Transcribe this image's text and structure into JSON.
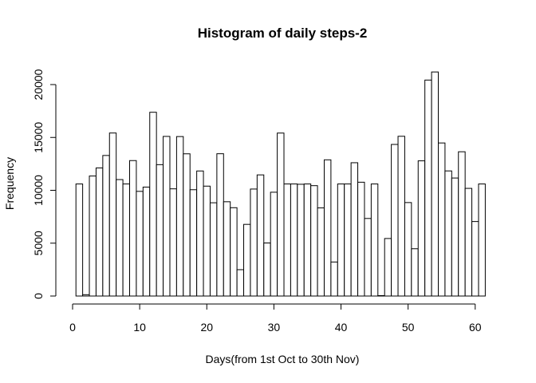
{
  "chart_data": {
    "type": "bar",
    "title": "Histogram of daily steps-2",
    "xlabel": "Days(from 1st Oct to 30th Nov)",
    "ylabel": "Frequency",
    "xlim": [
      0,
      62
    ],
    "ylim": [
      0,
      21500
    ],
    "x_ticks": [
      0,
      10,
      20,
      30,
      40,
      50,
      60
    ],
    "y_ticks": [
      0,
      5000,
      10000,
      15000,
      20000
    ],
    "grid": false,
    "legend": "none",
    "x": [
      1,
      2,
      3,
      4,
      5,
      6,
      7,
      8,
      9,
      10,
      11,
      12,
      13,
      14,
      15,
      16,
      17,
      18,
      19,
      20,
      21,
      22,
      23,
      24,
      25,
      26,
      27,
      28,
      29,
      30,
      31,
      32,
      33,
      34,
      35,
      36,
      37,
      38,
      39,
      40,
      41,
      42,
      43,
      44,
      45,
      46,
      47,
      48,
      49,
      50,
      51,
      52,
      53,
      54,
      55,
      56,
      57,
      58,
      59,
      60,
      61
    ],
    "values": [
      10600,
      126,
      11352,
      12116,
      13294,
      15420,
      11015,
      10600,
      12811,
      9900,
      10304,
      17382,
      12426,
      15098,
      10139,
      15084,
      13452,
      10056,
      11829,
      10395,
      8821,
      13460,
      8918,
      8355,
      2492,
      6778,
      10119,
      11458,
      5018,
      9819,
      15414,
      10600,
      10600,
      10571,
      10600,
      10439,
      8334,
      12883,
      3219,
      10600,
      10600,
      12608,
      10765,
      7336,
      10600,
      41,
      5441,
      14339,
      15110,
      8841,
      4472,
      12787,
      20427,
      21194,
      14478,
      11834,
      11162,
      13646,
      10183,
      7047,
      10600
    ],
    "colors": {
      "bar_fill": "#ffffff",
      "bar_stroke": "#000000",
      "axis": "#000000"
    }
  }
}
